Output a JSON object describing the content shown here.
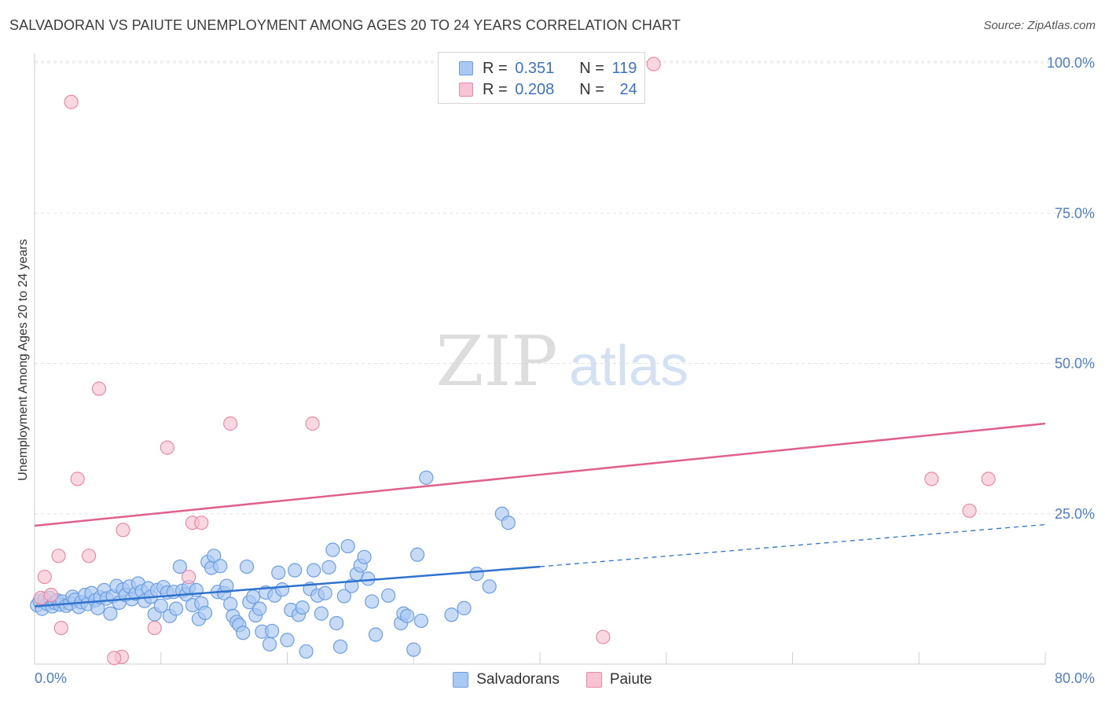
{
  "title": "SALVADORAN VS PAIUTE UNEMPLOYMENT AMONG AGES 20 TO 24 YEARS CORRELATION CHART",
  "source": "Source: ZipAtlas.com",
  "watermark": {
    "zip": "ZIP",
    "atlas": "atlas"
  },
  "legend": {
    "rows": [
      {
        "r_label": "R =",
        "r_value": "0.351",
        "n_label": "N =",
        "n_value": "119",
        "color": "#a9c8f2",
        "border": "#6b9ee0"
      },
      {
        "r_label": "R =",
        "r_value": "0.208",
        "n_label": "N =",
        "n_value": "24",
        "color": "#f8c3d3",
        "border": "#e88aa6"
      }
    ]
  },
  "bottom_legend": [
    {
      "name": "Salvadorans",
      "color": "#a9c8f2",
      "border": "#6b9ee0"
    },
    {
      "name": "Paiute",
      "color": "#f8c3d3",
      "border": "#e88aa6"
    }
  ],
  "chart_data": {
    "type": "scatter",
    "title": "SALVADORAN VS PAIUTE UNEMPLOYMENT AMONG AGES 20 TO 24 YEARS CORRELATION CHART",
    "xlabel": "",
    "ylabel": "Unemployment Among Ages 20 to 24 years",
    "xlim": [
      0,
      80
    ],
    "ylim": [
      0,
      100
    ],
    "x_ticks_labeled": [
      "0.0%",
      "80.0%"
    ],
    "y_ticks": [
      25,
      50,
      75,
      100
    ],
    "y_tick_labels": [
      "25.0%",
      "50.0%",
      "75.0%",
      "100.0%"
    ],
    "grid": true,
    "legend_position": "top-center",
    "series": [
      {
        "name": "Salvadorans",
        "color": "#6b9ee0",
        "fill": "#a9c8f2",
        "trend": {
          "x0": 0,
          "y0": 9.6,
          "x1": 40,
          "y1": 16.2,
          "dashed_to_x": 80,
          "dashed_to_y": 23.2,
          "color": "#2f72cc"
        },
        "points": [
          [
            0.2,
            9.8
          ],
          [
            0.4,
            10.5
          ],
          [
            0.6,
            9.2
          ],
          [
            0.8,
            10.8
          ],
          [
            1.0,
            10.0
          ],
          [
            1.2,
            11.0
          ],
          [
            1.4,
            9.6
          ],
          [
            1.6,
            10.2
          ],
          [
            1.8,
            10.6
          ],
          [
            2.0,
            9.9
          ],
          [
            2.2,
            10.4
          ],
          [
            2.5,
            9.7
          ],
          [
            2.8,
            10.1
          ],
          [
            3.0,
            11.2
          ],
          [
            3.2,
            10.7
          ],
          [
            3.5,
            9.5
          ],
          [
            3.7,
            10.3
          ],
          [
            4.0,
            11.5
          ],
          [
            4.2,
            10.0
          ],
          [
            4.5,
            11.8
          ],
          [
            4.8,
            10.6
          ],
          [
            5.0,
            9.3
          ],
          [
            5.2,
            11.1
          ],
          [
            5.5,
            12.3
          ],
          [
            5.7,
            10.9
          ],
          [
            6.0,
            8.4
          ],
          [
            6.2,
            11.3
          ],
          [
            6.5,
            13.0
          ],
          [
            6.7,
            10.2
          ],
          [
            7.0,
            12.4
          ],
          [
            7.2,
            11.5
          ],
          [
            7.5,
            12.9
          ],
          [
            7.7,
            10.8
          ],
          [
            8.0,
            11.7
          ],
          [
            8.2,
            13.4
          ],
          [
            8.5,
            12.1
          ],
          [
            8.7,
            10.5
          ],
          [
            9.0,
            12.6
          ],
          [
            9.2,
            11.2
          ],
          [
            9.5,
            8.3
          ],
          [
            9.7,
            12.3
          ],
          [
            10.0,
            9.7
          ],
          [
            10.2,
            12.8
          ],
          [
            10.5,
            11.9
          ],
          [
            10.7,
            8.0
          ],
          [
            11.0,
            12.0
          ],
          [
            11.2,
            9.2
          ],
          [
            11.5,
            16.2
          ],
          [
            11.7,
            12.2
          ],
          [
            12.0,
            11.6
          ],
          [
            12.2,
            12.8
          ],
          [
            12.5,
            9.8
          ],
          [
            12.8,
            12.3
          ],
          [
            13.0,
            7.5
          ],
          [
            13.2,
            10.1
          ],
          [
            13.5,
            8.5
          ],
          [
            13.7,
            17.0
          ],
          [
            14.0,
            16.0
          ],
          [
            14.2,
            18.0
          ],
          [
            14.5,
            12.0
          ],
          [
            14.7,
            16.3
          ],
          [
            15.0,
            11.8
          ],
          [
            15.2,
            13.0
          ],
          [
            15.5,
            10.0
          ],
          [
            15.7,
            8.0
          ],
          [
            16.0,
            7.0
          ],
          [
            16.2,
            6.5
          ],
          [
            16.5,
            5.2
          ],
          [
            16.8,
            16.2
          ],
          [
            17.0,
            10.3
          ],
          [
            17.3,
            11.2
          ],
          [
            17.5,
            8.1
          ],
          [
            17.8,
            9.2
          ],
          [
            18.0,
            5.4
          ],
          [
            18.3,
            11.9
          ],
          [
            18.6,
            3.3
          ],
          [
            18.8,
            5.5
          ],
          [
            19.0,
            11.4
          ],
          [
            19.3,
            15.2
          ],
          [
            19.6,
            12.4
          ],
          [
            20.0,
            4.0
          ],
          [
            20.3,
            9.0
          ],
          [
            20.6,
            15.6
          ],
          [
            20.9,
            8.2
          ],
          [
            21.2,
            9.4
          ],
          [
            21.5,
            2.1
          ],
          [
            21.8,
            12.5
          ],
          [
            22.1,
            15.6
          ],
          [
            22.4,
            11.4
          ],
          [
            22.7,
            8.4
          ],
          [
            23.0,
            11.8
          ],
          [
            23.3,
            16.1
          ],
          [
            23.6,
            19.0
          ],
          [
            23.9,
            6.8
          ],
          [
            24.2,
            2.9
          ],
          [
            24.5,
            11.3
          ],
          [
            24.8,
            19.6
          ],
          [
            25.1,
            13.0
          ],
          [
            25.5,
            15.0
          ],
          [
            25.8,
            16.4
          ],
          [
            26.1,
            17.8
          ],
          [
            26.4,
            14.2
          ],
          [
            26.7,
            10.4
          ],
          [
            27.0,
            4.9
          ],
          [
            28.0,
            11.4
          ],
          [
            29.0,
            6.8
          ],
          [
            29.2,
            8.4
          ],
          [
            29.5,
            8.0
          ],
          [
            30.0,
            2.4
          ],
          [
            30.3,
            18.2
          ],
          [
            30.6,
            7.2
          ],
          [
            31.0,
            31.0
          ],
          [
            33.0,
            8.2
          ],
          [
            34.0,
            9.3
          ],
          [
            35.0,
            15.0
          ],
          [
            37.0,
            25.0
          ],
          [
            37.5,
            23.5
          ],
          [
            36.0,
            12.9
          ]
        ]
      },
      {
        "name": "Paiute",
        "color": "#e88aa6",
        "fill": "#f8c3d3",
        "trend": {
          "x0": 0,
          "y0": 23.0,
          "x1": 80,
          "y1": 40.0,
          "color": "#e0608c"
        },
        "points": [
          [
            0.5,
            11.0
          ],
          [
            0.8,
            14.5
          ],
          [
            1.3,
            11.5
          ],
          [
            1.9,
            18.0
          ],
          [
            2.1,
            6.0
          ],
          [
            2.9,
            93.5
          ],
          [
            3.4,
            30.8
          ],
          [
            4.3,
            18.0
          ],
          [
            5.1,
            45.8
          ],
          [
            6.9,
            1.2
          ],
          [
            6.3,
            1.0
          ],
          [
            7.0,
            22.3
          ],
          [
            9.5,
            6.0
          ],
          [
            10.5,
            36.0
          ],
          [
            12.2,
            14.5
          ],
          [
            12.5,
            23.5
          ],
          [
            13.2,
            23.5
          ],
          [
            15.5,
            40.0
          ],
          [
            22.0,
            40.0
          ],
          [
            45.0,
            4.5
          ],
          [
            49.0,
            99.8
          ],
          [
            71.0,
            30.8
          ],
          [
            74.0,
            25.5
          ],
          [
            75.5,
            30.8
          ]
        ]
      }
    ]
  }
}
